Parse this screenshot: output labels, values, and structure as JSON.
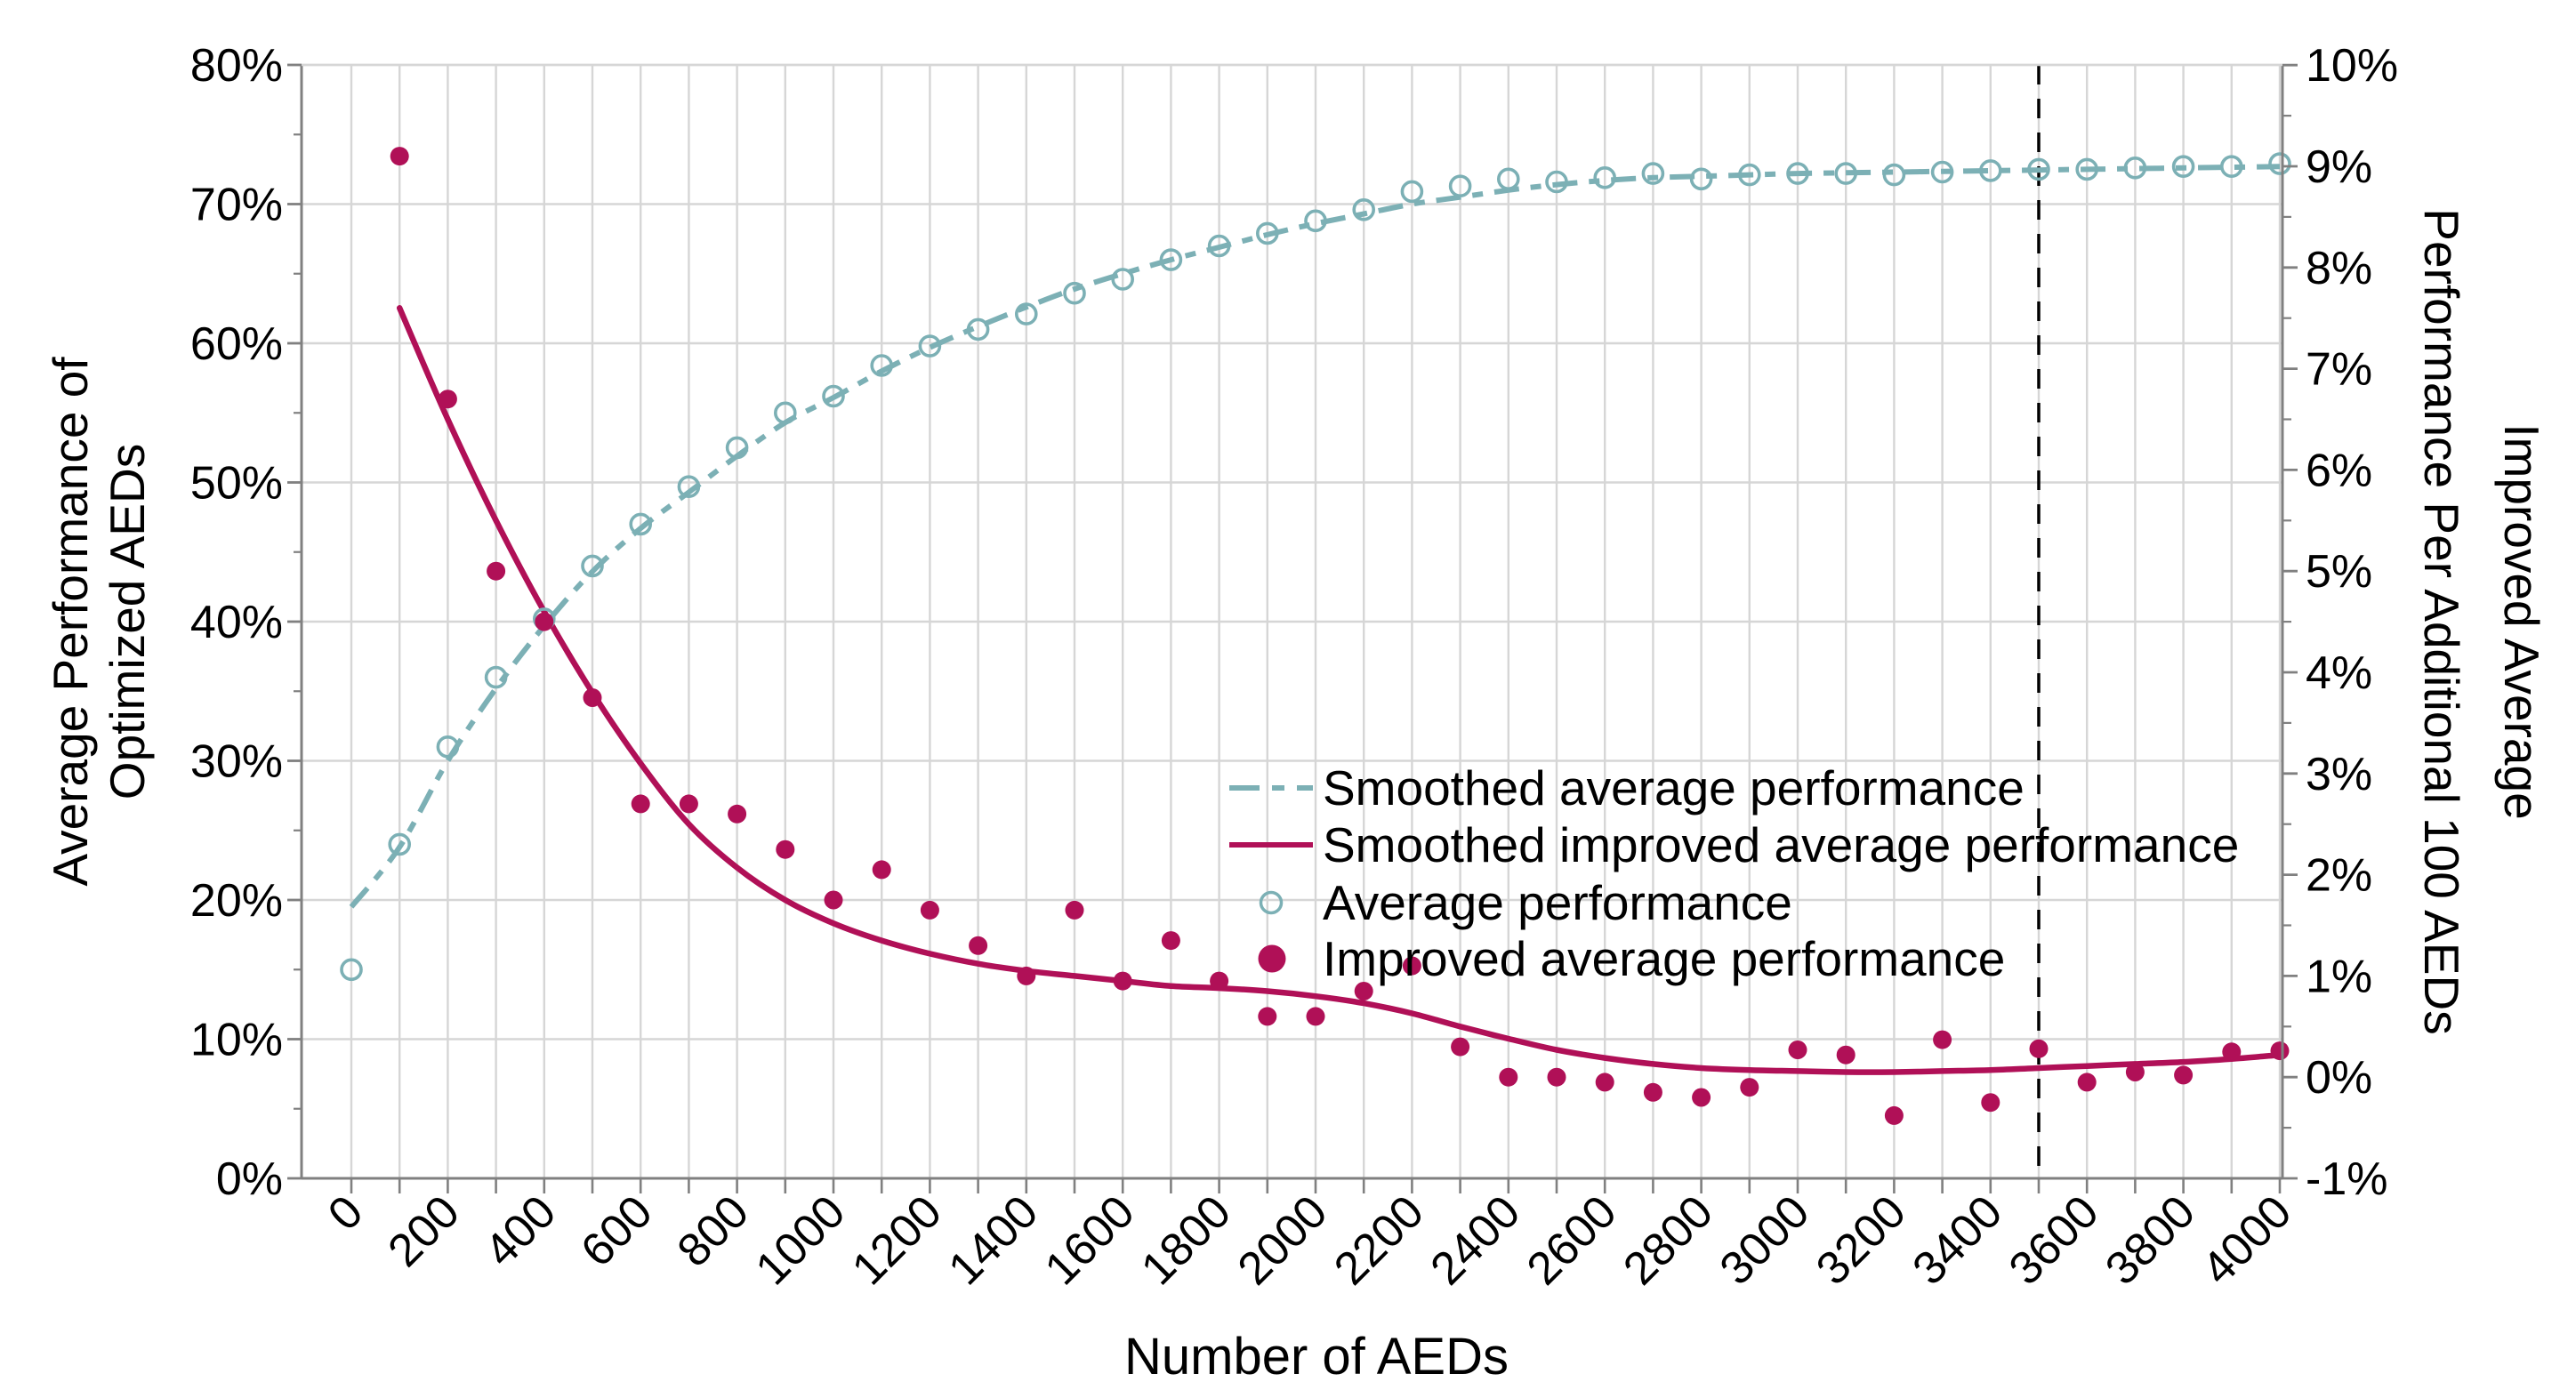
{
  "chart_data": {
    "type": "line",
    "title": "",
    "xlabel": "Number of AEDs",
    "x_axis": {
      "min": 0,
      "max": 4000,
      "grid_step": 100,
      "tick_values": [
        0,
        200,
        400,
        600,
        800,
        1000,
        1200,
        1400,
        1600,
        1800,
        2000,
        2200,
        2400,
        2600,
        2800,
        3000,
        3200,
        3400,
        3600,
        3800,
        4000
      ],
      "tick_labels": [
        "0",
        "200",
        "400",
        "600",
        "800",
        "1000",
        "1200",
        "1400",
        "1600",
        "1800",
        "2000",
        "2200",
        "2400",
        "2600",
        "2800",
        "3000",
        "3200",
        "3400",
        "3600",
        "3800",
        "4000"
      ]
    },
    "y_left": {
      "title_line1": "Average Performance of",
      "title_line2": "Optimized AEDs",
      "min": 0,
      "max": 80,
      "major_step": 10,
      "minor_step": 5,
      "tick_values": [
        0,
        10,
        20,
        30,
        40,
        50,
        60,
        70,
        80
      ],
      "tick_labels": [
        "0%",
        "10%",
        "20%",
        "30%",
        "40%",
        "50%",
        "60%",
        "70%",
        "80%"
      ]
    },
    "y_right": {
      "title_line1": "Improved Average",
      "title_line2": "Performance Per Additional 100 AEDs",
      "min": -1,
      "max": 10,
      "major_step": 1,
      "minor_step": 0.5,
      "tick_values": [
        -1,
        0,
        1,
        2,
        3,
        4,
        5,
        6,
        7,
        8,
        9,
        10
      ],
      "tick_labels": [
        "-1%",
        "0%",
        "1%",
        "2%",
        "3%",
        "4%",
        "5%",
        "6%",
        "7%",
        "8%",
        "9%",
        "10%"
      ]
    },
    "vline": {
      "x": 3500,
      "style": "dashed",
      "color": "#000000"
    },
    "legend": [
      {
        "label": "Smoothed average performance",
        "series": "smoothed_average"
      },
      {
        "label": "Smoothed improved average performance",
        "series": "smoothed_improvement"
      },
      {
        "label": "Average performance",
        "series": "average_points"
      },
      {
        "label": "Improved average performance",
        "series": "improvement_points"
      }
    ],
    "colors": {
      "teal": "#7CB0B5",
      "crimson": "#B01057",
      "grid": "#D6D6D6",
      "spine": "#808080",
      "text": "#000000"
    },
    "series": {
      "smoothed_average": {
        "axis": "left",
        "style": "dashdot-line",
        "points": [
          [
            0,
            19.5
          ],
          [
            100,
            23.8
          ],
          [
            200,
            30
          ],
          [
            300,
            35.2
          ],
          [
            400,
            39.7
          ],
          [
            500,
            43.6
          ],
          [
            600,
            46.7
          ],
          [
            700,
            49.3
          ],
          [
            800,
            51.9
          ],
          [
            900,
            54.3
          ],
          [
            1000,
            56.1
          ],
          [
            1100,
            58
          ],
          [
            1200,
            59.7
          ],
          [
            1300,
            61.2
          ],
          [
            1400,
            62.6
          ],
          [
            1500,
            63.9
          ],
          [
            1600,
            65
          ],
          [
            1700,
            66
          ],
          [
            1800,
            66.9
          ],
          [
            1900,
            67.8
          ],
          [
            2000,
            68.6
          ],
          [
            2100,
            69.3
          ],
          [
            2200,
            70
          ],
          [
            2300,
            70.5
          ],
          [
            2400,
            71
          ],
          [
            2500,
            71.4
          ],
          [
            2600,
            71.7
          ],
          [
            2700,
            71.9
          ],
          [
            2800,
            72
          ],
          [
            2900,
            72.1
          ],
          [
            3000,
            72.2
          ],
          [
            3100,
            72.25
          ],
          [
            3200,
            72.3
          ],
          [
            3300,
            72.35
          ],
          [
            3400,
            72.4
          ],
          [
            3500,
            72.45
          ],
          [
            3600,
            72.5
          ],
          [
            3700,
            72.55
          ],
          [
            3800,
            72.6
          ],
          [
            3900,
            72.65
          ],
          [
            4000,
            72.7
          ]
        ]
      },
      "smoothed_improvement": {
        "axis": "right",
        "style": "solid-line",
        "points": [
          [
            100,
            7.6
          ],
          [
            200,
            6.5
          ],
          [
            300,
            5.5
          ],
          [
            400,
            4.6
          ],
          [
            500,
            3.8
          ],
          [
            600,
            3.1
          ],
          [
            700,
            2.5
          ],
          [
            800,
            2.07
          ],
          [
            900,
            1.75
          ],
          [
            1000,
            1.52
          ],
          [
            1100,
            1.35
          ],
          [
            1200,
            1.22
          ],
          [
            1300,
            1.12
          ],
          [
            1400,
            1.05
          ],
          [
            1500,
            1.0
          ],
          [
            1600,
            0.95
          ],
          [
            1700,
            0.9
          ],
          [
            1800,
            0.88
          ],
          [
            1900,
            0.85
          ],
          [
            2000,
            0.8
          ],
          [
            2100,
            0.73
          ],
          [
            2200,
            0.63
          ],
          [
            2300,
            0.5
          ],
          [
            2400,
            0.38
          ],
          [
            2500,
            0.27
          ],
          [
            2600,
            0.19
          ],
          [
            2700,
            0.13
          ],
          [
            2800,
            0.09
          ],
          [
            2900,
            0.07
          ],
          [
            3000,
            0.06
          ],
          [
            3100,
            0.05
          ],
          [
            3200,
            0.05
          ],
          [
            3300,
            0.06
          ],
          [
            3400,
            0.07
          ],
          [
            3500,
            0.09
          ],
          [
            3600,
            0.11
          ],
          [
            3700,
            0.13
          ],
          [
            3800,
            0.15
          ],
          [
            3900,
            0.18
          ],
          [
            4000,
            0.22
          ]
        ]
      },
      "average_points": {
        "axis": "left",
        "style": "open-circle",
        "points": [
          [
            0,
            15
          ],
          [
            100,
            24
          ],
          [
            200,
            31
          ],
          [
            300,
            36
          ],
          [
            400,
            40.2
          ],
          [
            500,
            44
          ],
          [
            600,
            47
          ],
          [
            700,
            49.7
          ],
          [
            800,
            52.5
          ],
          [
            900,
            55
          ],
          [
            1000,
            56.2
          ],
          [
            1100,
            58.4
          ],
          [
            1200,
            59.8
          ],
          [
            1300,
            61
          ],
          [
            1400,
            62.1
          ],
          [
            1500,
            63.6
          ],
          [
            1600,
            64.6
          ],
          [
            1700,
            66
          ],
          [
            1800,
            67
          ],
          [
            1900,
            67.9
          ],
          [
            2000,
            68.8
          ],
          [
            2100,
            69.6
          ],
          [
            2200,
            70.9
          ],
          [
            2300,
            71.3
          ],
          [
            2400,
            71.8
          ],
          [
            2500,
            71.6
          ],
          [
            2600,
            71.9
          ],
          [
            2700,
            72.2
          ],
          [
            2800,
            71.8
          ],
          [
            2900,
            72.1
          ],
          [
            3000,
            72.2
          ],
          [
            3100,
            72.2
          ],
          [
            3200,
            72.1
          ],
          [
            3300,
            72.3
          ],
          [
            3400,
            72.4
          ],
          [
            3500,
            72.5
          ],
          [
            3600,
            72.5
          ],
          [
            3700,
            72.6
          ],
          [
            3800,
            72.7
          ],
          [
            3900,
            72.7
          ],
          [
            4000,
            72.9
          ]
        ]
      },
      "improvement_points": {
        "axis": "right",
        "style": "filled-dot",
        "points": [
          [
            100,
            9.1
          ],
          [
            200,
            6.7
          ],
          [
            300,
            5.0
          ],
          [
            400,
            4.5
          ],
          [
            500,
            3.75
          ],
          [
            600,
            2.7
          ],
          [
            700,
            2.7
          ],
          [
            800,
            2.6
          ],
          [
            900,
            2.25
          ],
          [
            1000,
            1.75
          ],
          [
            1100,
            2.05
          ],
          [
            1200,
            1.65
          ],
          [
            1300,
            1.3
          ],
          [
            1400,
            1.0
          ],
          [
            1500,
            1.65
          ],
          [
            1600,
            0.95
          ],
          [
            1700,
            1.35
          ],
          [
            1800,
            0.95
          ],
          [
            1900,
            0.6
          ],
          [
            2000,
            0.6
          ],
          [
            2100,
            0.85
          ],
          [
            2200,
            1.1
          ],
          [
            2300,
            0.3
          ],
          [
            2400,
            0.0
          ],
          [
            2500,
            0.0
          ],
          [
            2600,
            -0.05
          ],
          [
            2700,
            -0.15
          ],
          [
            2800,
            -0.2
          ],
          [
            2900,
            -0.1
          ],
          [
            3000,
            0.27
          ],
          [
            3100,
            0.22
          ],
          [
            3200,
            -0.38
          ],
          [
            3300,
            0.37
          ],
          [
            3400,
            -0.25
          ],
          [
            3500,
            0.28
          ],
          [
            3600,
            -0.05
          ],
          [
            3700,
            0.05
          ],
          [
            3800,
            0.02
          ],
          [
            3900,
            0.25
          ],
          [
            4000,
            0.26
          ]
        ]
      }
    }
  }
}
